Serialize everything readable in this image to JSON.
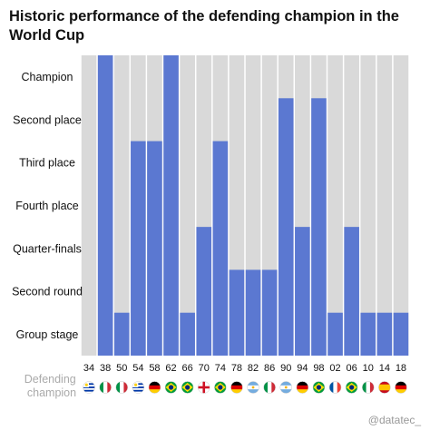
{
  "title": "Historic performance of the defending champion in the World Cup",
  "defending_label": [
    "Defending",
    "champion"
  ],
  "credit": "@datatec_",
  "colors": {
    "bar": "#5b78d1",
    "background_column": "#d9d9d9"
  },
  "chart_data": {
    "type": "bar",
    "title": "Historic performance of the defending champion in the World Cup",
    "xlabel": "",
    "ylabel": "",
    "levels": [
      "Group stage",
      "Second round",
      "Quarter-finals",
      "Fourth place",
      "Third place",
      "Second place",
      "Champion"
    ],
    "categories": [
      "34",
      "38",
      "50",
      "54",
      "58",
      "62",
      "66",
      "70",
      "74",
      "78",
      "82",
      "86",
      "90",
      "94",
      "98",
      "02",
      "06",
      "10",
      "14",
      "18"
    ],
    "values": [
      0,
      7,
      1,
      5,
      5,
      7,
      1,
      3,
      5,
      2,
      2,
      2,
      6,
      3,
      6,
      1,
      3,
      1,
      1,
      1
    ],
    "defending_champion_flags": [
      "uruguay-flag",
      "italy-flag",
      "italy-flag",
      "uruguay-flag",
      "germany-flag",
      "brazil-flag",
      "brazil-flag",
      "england-flag",
      "brazil-flag",
      "germany-flag",
      "argentina-flag",
      "italy-flag",
      "argentina-flag",
      "germany-flag",
      "brazil-flag",
      "france-flag",
      "brazil-flag",
      "italy-flag",
      "spain-flag",
      "germany-flag"
    ],
    "grid": false,
    "legend": "none"
  }
}
